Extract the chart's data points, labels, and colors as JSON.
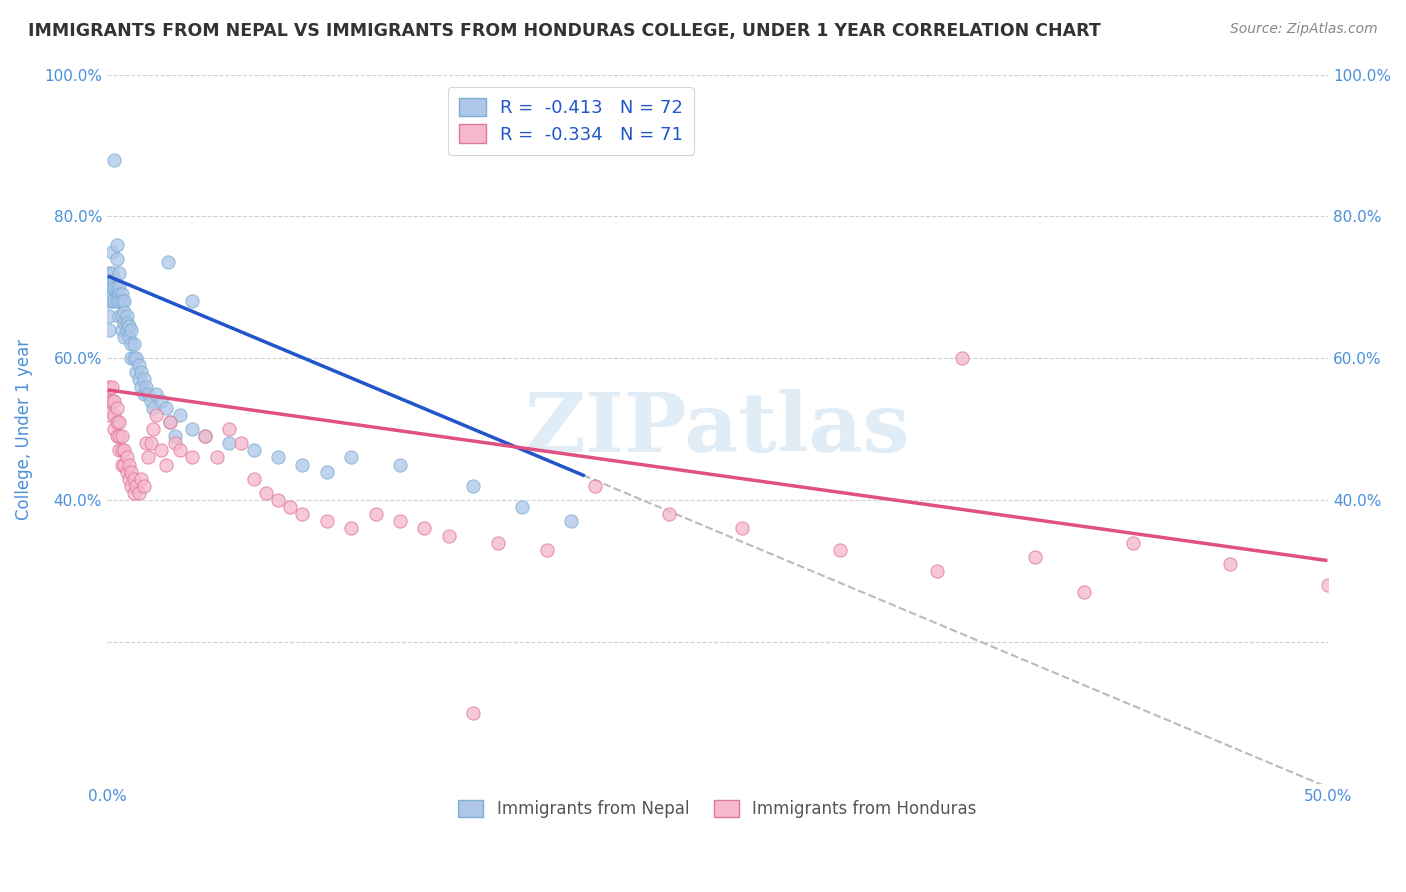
{
  "title": "IMMIGRANTS FROM NEPAL VS IMMIGRANTS FROM HONDURAS COLLEGE, UNDER 1 YEAR CORRELATION CHART",
  "source": "Source: ZipAtlas.com",
  "ylabel": "College, Under 1 year",
  "xlim": [
    0.0,
    0.5
  ],
  "ylim": [
    0.0,
    1.0
  ],
  "xticks": [
    0.0,
    0.1,
    0.2,
    0.3,
    0.4,
    0.5
  ],
  "xticklabels": [
    "0.0%",
    "",
    "",
    "",
    "",
    "50.0%"
  ],
  "yticks_left": [
    0.0,
    0.2,
    0.4,
    0.6,
    0.8,
    1.0
  ],
  "yticklabels_left": [
    "",
    "",
    "40.0%",
    "60.0%",
    "80.0%",
    "100.0%"
  ],
  "yticklabels_right": [
    "",
    "",
    "40.0%",
    "60.0%",
    "80.0%",
    "100.0%"
  ],
  "nepal_color": "#aec6e8",
  "nepal_edge_color": "#7bafd4",
  "honduras_color": "#f5b8cc",
  "honduras_edge_color": "#e07898",
  "nepal_line_color": "#2255cc",
  "honduras_line_color": "#e05080",
  "dashed_color": "#bbbbbb",
  "nepal_R": -0.413,
  "nepal_N": 72,
  "honduras_R": -0.334,
  "honduras_N": 71,
  "watermark_color": "#cce0f0",
  "title_color": "#333333",
  "tick_color": "#4a90d9",
  "grid_color": "#cccccc",
  "background_color": "#ffffff",
  "nepal_line_x0": 0.001,
  "nepal_line_x1": 0.195,
  "nepal_line_y0": 0.715,
  "nepal_line_y1": 0.435,
  "honduras_line_x0": 0.001,
  "honduras_line_x1": 0.499,
  "honduras_line_y0": 0.555,
  "honduras_line_y1": 0.315,
  "dashed_line_x0": 0.195,
  "dashed_line_x1": 0.499,
  "nepal_x": [
    0.001,
    0.001,
    0.001,
    0.001,
    0.001,
    0.002,
    0.002,
    0.002,
    0.002,
    0.003,
    0.003,
    0.003,
    0.003,
    0.004,
    0.004,
    0.004,
    0.004,
    0.005,
    0.005,
    0.005,
    0.005,
    0.005,
    0.006,
    0.006,
    0.006,
    0.006,
    0.007,
    0.007,
    0.007,
    0.007,
    0.008,
    0.008,
    0.008,
    0.009,
    0.009,
    0.01,
    0.01,
    0.01,
    0.011,
    0.011,
    0.012,
    0.012,
    0.013,
    0.013,
    0.014,
    0.014,
    0.015,
    0.015,
    0.016,
    0.017,
    0.018,
    0.019,
    0.02,
    0.022,
    0.024,
    0.026,
    0.028,
    0.03,
    0.035,
    0.04,
    0.05,
    0.06,
    0.07,
    0.08,
    0.09,
    0.1,
    0.12,
    0.15,
    0.17,
    0.19,
    0.025,
    0.035
  ],
  "nepal_y": [
    0.72,
    0.7,
    0.68,
    0.66,
    0.64,
    0.75,
    0.72,
    0.7,
    0.68,
    0.88,
    0.71,
    0.7,
    0.68,
    0.76,
    0.74,
    0.7,
    0.68,
    0.72,
    0.7,
    0.69,
    0.68,
    0.66,
    0.69,
    0.68,
    0.66,
    0.64,
    0.68,
    0.665,
    0.65,
    0.63,
    0.66,
    0.65,
    0.64,
    0.645,
    0.63,
    0.64,
    0.62,
    0.6,
    0.62,
    0.6,
    0.6,
    0.58,
    0.59,
    0.57,
    0.58,
    0.56,
    0.57,
    0.55,
    0.56,
    0.55,
    0.54,
    0.53,
    0.55,
    0.54,
    0.53,
    0.51,
    0.49,
    0.52,
    0.5,
    0.49,
    0.48,
    0.47,
    0.46,
    0.45,
    0.44,
    0.46,
    0.45,
    0.42,
    0.39,
    0.37,
    0.735,
    0.68
  ],
  "honduras_x": [
    0.001,
    0.001,
    0.001,
    0.002,
    0.002,
    0.003,
    0.003,
    0.003,
    0.004,
    0.004,
    0.004,
    0.005,
    0.005,
    0.005,
    0.006,
    0.006,
    0.006,
    0.007,
    0.007,
    0.008,
    0.008,
    0.009,
    0.009,
    0.01,
    0.01,
    0.011,
    0.011,
    0.012,
    0.013,
    0.014,
    0.015,
    0.016,
    0.017,
    0.018,
    0.019,
    0.02,
    0.022,
    0.024,
    0.026,
    0.028,
    0.03,
    0.035,
    0.04,
    0.045,
    0.05,
    0.055,
    0.06,
    0.065,
    0.07,
    0.075,
    0.08,
    0.09,
    0.1,
    0.11,
    0.12,
    0.13,
    0.14,
    0.16,
    0.18,
    0.2,
    0.23,
    0.26,
    0.3,
    0.34,
    0.38,
    0.42,
    0.46,
    0.5,
    0.35,
    0.4,
    0.15
  ],
  "honduras_y": [
    0.56,
    0.54,
    0.52,
    0.56,
    0.54,
    0.54,
    0.52,
    0.5,
    0.53,
    0.51,
    0.49,
    0.51,
    0.49,
    0.47,
    0.49,
    0.47,
    0.45,
    0.47,
    0.45,
    0.46,
    0.44,
    0.45,
    0.43,
    0.44,
    0.42,
    0.43,
    0.41,
    0.42,
    0.41,
    0.43,
    0.42,
    0.48,
    0.46,
    0.48,
    0.5,
    0.52,
    0.47,
    0.45,
    0.51,
    0.48,
    0.47,
    0.46,
    0.49,
    0.46,
    0.5,
    0.48,
    0.43,
    0.41,
    0.4,
    0.39,
    0.38,
    0.37,
    0.36,
    0.38,
    0.37,
    0.36,
    0.35,
    0.34,
    0.33,
    0.42,
    0.38,
    0.36,
    0.33,
    0.3,
    0.32,
    0.34,
    0.31,
    0.28,
    0.6,
    0.27,
    0.1
  ]
}
